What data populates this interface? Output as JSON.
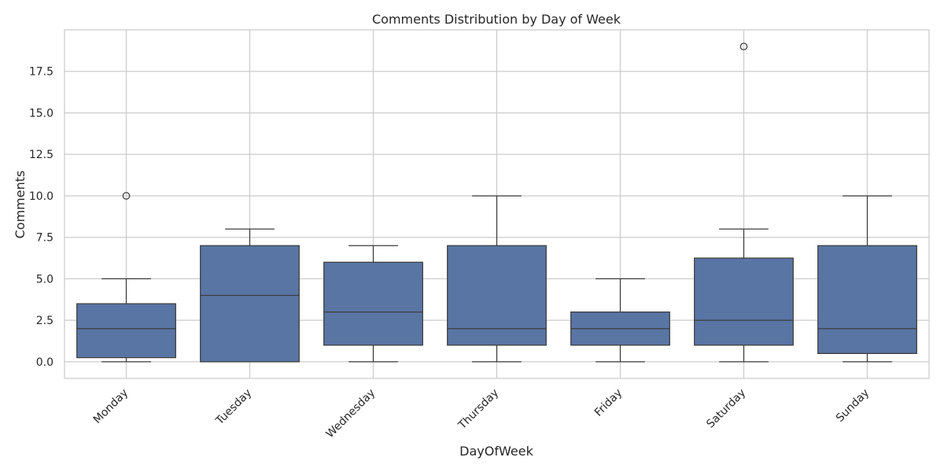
{
  "chart_data": {
    "type": "box",
    "title": "Comments Distribution by Day of Week",
    "xlabel": "DayOfWeek",
    "ylabel": "Comments",
    "ylim": [
      -1,
      20
    ],
    "yticks": [
      "0.0",
      "2.5",
      "5.0",
      "7.5",
      "10.0",
      "12.5",
      "15.0",
      "17.5"
    ],
    "ytick_values": [
      0,
      2.5,
      5,
      7.5,
      10,
      12.5,
      15,
      17.5
    ],
    "categories": [
      "Monday",
      "Tuesday",
      "Wednesday",
      "Thursday",
      "Friday",
      "Saturday",
      "Sunday"
    ],
    "boxes": [
      {
        "min": 0,
        "q1": 0.25,
        "median": 2,
        "q3": 3.5,
        "max": 5,
        "outliers": [
          10
        ]
      },
      {
        "min": 0,
        "q1": 0,
        "median": 4,
        "q3": 7,
        "max": 8,
        "outliers": []
      },
      {
        "min": 0,
        "q1": 1,
        "median": 3,
        "q3": 6,
        "max": 7,
        "outliers": []
      },
      {
        "min": 0,
        "q1": 1,
        "median": 2,
        "q3": 7,
        "max": 10,
        "outliers": []
      },
      {
        "min": 0,
        "q1": 1,
        "median": 2,
        "q3": 3,
        "max": 5,
        "outliers": []
      },
      {
        "min": 0,
        "q1": 1,
        "median": 2.5,
        "q3": 6.25,
        "max": 8,
        "outliers": [
          19
        ]
      },
      {
        "min": 0,
        "q1": 0.5,
        "median": 2,
        "q3": 7,
        "max": 10,
        "outliers": []
      }
    ],
    "grid": true,
    "colors": {
      "box_fill": "#5975a4",
      "line": "#3d3d3d",
      "grid": "#cccccc",
      "frame": "#cccccc"
    }
  }
}
